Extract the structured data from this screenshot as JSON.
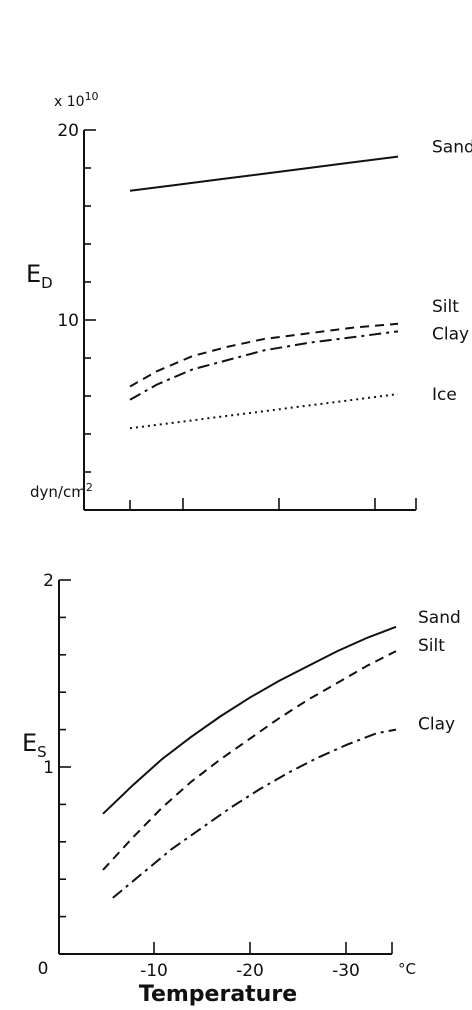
{
  "chart_data": [
    {
      "type": "line",
      "ylabel_main": "E",
      "ylabel_sub": "D",
      "y_multiplier": "x 10",
      "y_multiplier_exp": "10",
      "y_unit": "dyn/cm",
      "y_unit_exp": "2",
      "xlim": [
        0,
        -37
      ],
      "ylim": [
        0,
        20
      ],
      "y_tick_labels": [
        {
          "value": 20,
          "label": "20"
        },
        {
          "value": 10,
          "label": "10"
        }
      ],
      "y_minor_ticks": [
        2,
        4,
        6,
        8,
        12,
        14,
        16,
        18
      ],
      "x_ticks": [
        -10,
        -20,
        -30
      ],
      "grid": false,
      "series": [
        {
          "name": "Sand",
          "style": "solid",
          "x": [
            -5,
            -10,
            -15,
            -20,
            -25,
            -30,
            -35
          ],
          "y": [
            16.8,
            17.1,
            17.4,
            17.7,
            18.0,
            18.3,
            18.6
          ]
        },
        {
          "name": "Silt",
          "style": "dashed",
          "x": [
            -5,
            -8,
            -12,
            -16,
            -20,
            -25,
            -30,
            -35
          ],
          "y": [
            6.5,
            7.3,
            8.1,
            8.6,
            9.0,
            9.3,
            9.6,
            9.8
          ]
        },
        {
          "name": "Clay",
          "style": "dashdot",
          "x": [
            -5,
            -8,
            -12,
            -16,
            -20,
            -25,
            -30,
            -35
          ],
          "y": [
            5.8,
            6.6,
            7.4,
            7.9,
            8.4,
            8.8,
            9.1,
            9.4
          ]
        },
        {
          "name": "Ice",
          "style": "dotted",
          "x": [
            -5,
            -10,
            -15,
            -20,
            -25,
            -30,
            -35
          ],
          "y": [
            4.3,
            4.6,
            4.9,
            5.2,
            5.5,
            5.8,
            6.1
          ]
        }
      ]
    },
    {
      "type": "line",
      "ylabel_main": "E",
      "ylabel_sub": "S",
      "xlabel": "Temperature",
      "x_unit": "°C",
      "xlim": [
        0,
        -37
      ],
      "ylim": [
        0,
        2
      ],
      "y_tick_labels": [
        {
          "value": 2,
          "label": "2"
        },
        {
          "value": 1,
          "label": "1"
        }
      ],
      "y_minor_ticks": [
        0.2,
        0.4,
        0.6,
        0.8,
        1.2,
        1.4,
        1.6,
        1.8
      ],
      "x_ticks": [
        {
          "value": 0,
          "label": "0"
        },
        {
          "value": -10,
          "label": "-10"
        },
        {
          "value": -20,
          "label": "-20"
        },
        {
          "value": -30,
          "label": "-30"
        }
      ],
      "grid": false,
      "series": [
        {
          "name": "Sand",
          "style": "solid",
          "x": [
            -5,
            -8,
            -11,
            -14,
            -17,
            -20,
            -23,
            -26,
            -29,
            -32,
            -35
          ],
          "y": [
            0.75,
            0.9,
            1.04,
            1.16,
            1.27,
            1.37,
            1.46,
            1.54,
            1.62,
            1.69,
            1.75
          ]
        },
        {
          "name": "Silt",
          "style": "dashed",
          "x": [
            -5,
            -8,
            -11,
            -14,
            -17,
            -20,
            -23,
            -26,
            -29,
            -32,
            -35
          ],
          "y": [
            0.45,
            0.62,
            0.78,
            0.92,
            1.04,
            1.15,
            1.26,
            1.36,
            1.45,
            1.54,
            1.62
          ]
        },
        {
          "name": "Clay",
          "style": "dashdot",
          "x": [
            -6,
            -9,
            -12,
            -15,
            -18,
            -21,
            -24,
            -27,
            -30,
            -33,
            -35
          ],
          "y": [
            0.3,
            0.43,
            0.56,
            0.67,
            0.78,
            0.88,
            0.97,
            1.05,
            1.12,
            1.18,
            1.2
          ]
        }
      ]
    }
  ]
}
